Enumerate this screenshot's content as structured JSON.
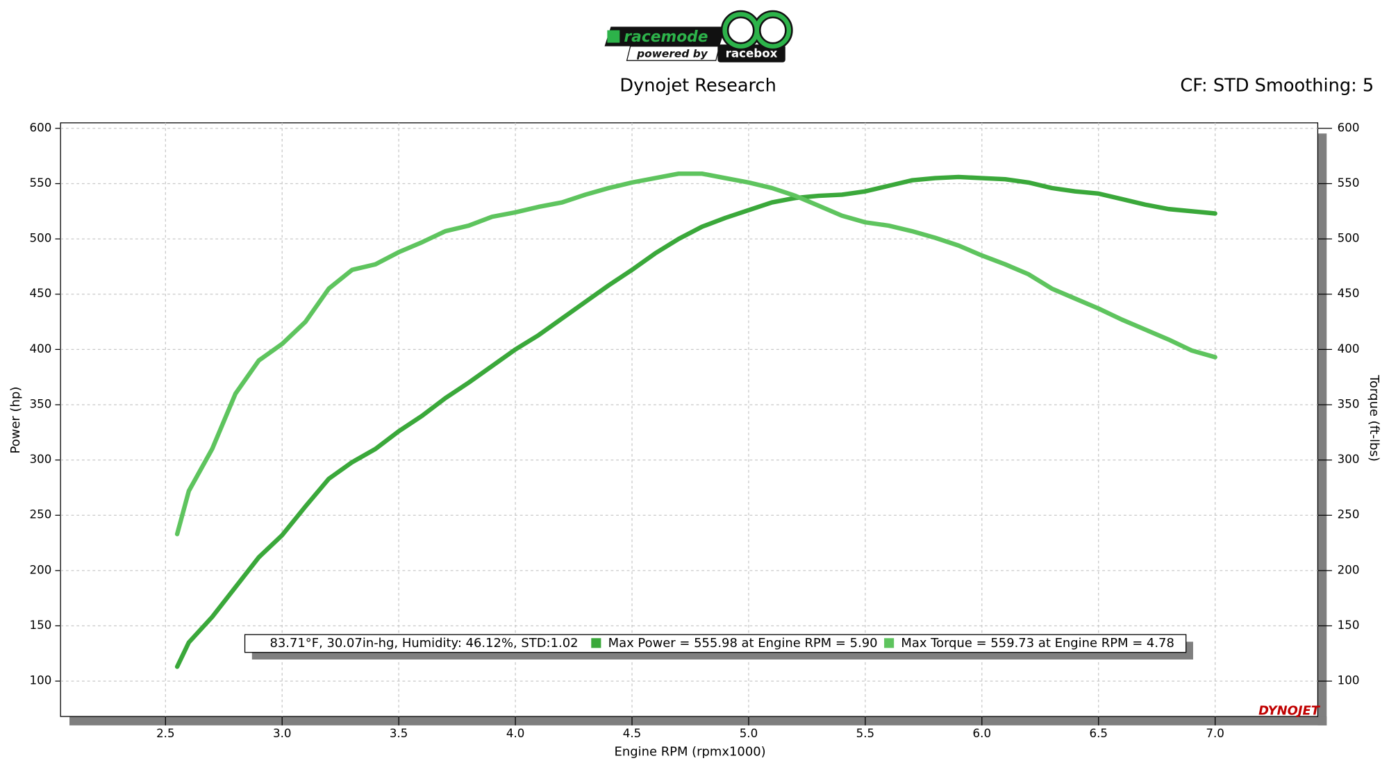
{
  "chart_data": {
    "type": "line",
    "logo": {
      "brand": "racemode",
      "tagline": "powered by",
      "partner": "racebox"
    },
    "title": "Dynojet Research",
    "subtitle": "CF: STD Smoothing: 5",
    "xlabel": "Engine RPM (rpmx1000)",
    "ylabel": "Power (hp)",
    "y2label": "Torque (ft-lbs)",
    "conditions": "83.71°F, 30.07in-hg, Humidity: 46.12%, STD:1.02",
    "watermark": "DYNOJET",
    "grid": true,
    "xlim": [
      2.05,
      7.44
    ],
    "ylim": [
      68,
      605
    ],
    "y2lim": [
      68,
      605
    ],
    "xticks": [
      2.5,
      {
        "value": 3,
        "label": "3.0"
      },
      3.5,
      {
        "value": 4,
        "label": "4.0"
      },
      4.5,
      {
        "value": 5,
        "label": "5.0"
      },
      5.5,
      {
        "value": 6,
        "label": "6.0"
      },
      6.5,
      {
        "value": 7,
        "label": "7.0"
      }
    ],
    "yticks": [
      100,
      150,
      200,
      250,
      300,
      350,
      400,
      450,
      500,
      550,
      600
    ],
    "y2ticks": [
      100,
      150,
      200,
      250,
      300,
      350,
      400,
      450,
      500,
      550,
      600
    ],
    "x": [
      2.55,
      2.6,
      2.7,
      2.8,
      2.9,
      3.0,
      3.1,
      3.2,
      3.3,
      3.4,
      3.5,
      3.6,
      3.7,
      3.8,
      3.9,
      4.0,
      4.1,
      4.2,
      4.3,
      4.4,
      4.5,
      4.6,
      4.7,
      4.8,
      4.9,
      5.0,
      5.1,
      5.2,
      5.3,
      5.4,
      5.5,
      5.6,
      5.7,
      5.8,
      5.9,
      6.0,
      6.1,
      6.2,
      6.3,
      6.4,
      6.5,
      6.6,
      6.7,
      6.8,
      6.9,
      7.0
    ],
    "series": [
      {
        "name": "Max Power = 555.98 at Engine RPM = 5.90",
        "color": "#3aa83a",
        "values": [
          113,
          135,
          158,
          185,
          212,
          232,
          258,
          283,
          298,
          310,
          326,
          340,
          356,
          370,
          385,
          400,
          413,
          428,
          443,
          458,
          472,
          487,
          500,
          511,
          519,
          526,
          533,
          537,
          539,
          540,
          543,
          548,
          553,
          555,
          556,
          555,
          554,
          551,
          546,
          543,
          541,
          536,
          531,
          527,
          525,
          523
        ]
      },
      {
        "name": "Max Torque = 559.73 at Engine RPM = 4.78",
        "color": "#5ec45e",
        "axis": "y2",
        "values": [
          233,
          272,
          310,
          360,
          390,
          405,
          425,
          455,
          472,
          477,
          488,
          497,
          507,
          512,
          520,
          524,
          529,
          533,
          540,
          546,
          551,
          555,
          559,
          559,
          555,
          551,
          546,
          539,
          530,
          521,
          515,
          512,
          507,
          501,
          494,
          485,
          477,
          468,
          455,
          446,
          437,
          427,
          418,
          409,
          399,
          393
        ]
      }
    ]
  }
}
